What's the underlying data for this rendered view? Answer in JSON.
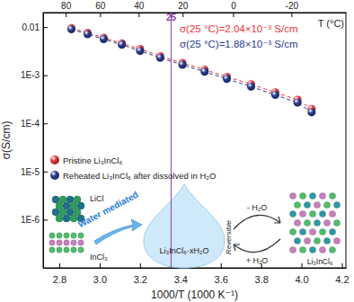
{
  "chart_data": {
    "type": "scatter",
    "x_label": "1000/T (1000 K⁻¹)",
    "y_label": "σ(S/cm)",
    "x2_label": "T (°C)",
    "log": "y",
    "xlim": [
      2.72,
      4.22
    ],
    "ylim": [
      1e-07,
      0.02
    ],
    "xticks": [
      2.8,
      {
        "value": 3,
        "label": "3.0"
      },
      3.2,
      3.4,
      3.6,
      3.8,
      {
        "value": 4,
        "label": "4.0"
      },
      4.2
    ],
    "x2ticks": [
      {
        "value": 2.832,
        "label": "80"
      },
      {
        "value": 3.002,
        "label": "60"
      },
      {
        "value": 3.193,
        "label": "40"
      },
      {
        "value": 3.411,
        "label": "20"
      },
      {
        "value": 3.661,
        "label": "0"
      },
      {
        "value": 3.95,
        "label": "-20"
      }
    ],
    "yticks": [
      {
        "value": 1e-06,
        "label": "1E-6"
      },
      {
        "value": 1e-05,
        "label": "1E-5"
      },
      {
        "value": 0.0001,
        "label": "1E-4"
      },
      {
        "value": 0.001,
        "label": "1E-3"
      },
      0.01
    ],
    "x": [
      2.86,
      2.94,
      3.02,
      3.11,
      3.2,
      3.3,
      3.41,
      3.52,
      3.63,
      3.75,
      3.87,
      3.98,
      4.05
    ],
    "series": [
      {
        "name": "Pristine Li₃InCl₆",
        "color": "#e8343b",
        "marker": "circle",
        "line_style": "dashed",
        "values": [
          0.0095,
          0.0076,
          0.006,
          0.0046,
          0.0035,
          0.0025,
          0.0018,
          0.0013,
          0.00093,
          0.00065,
          0.00044,
          0.00031,
          0.0002
        ]
      },
      {
        "name": "Reheated Li₃InCl₆ after dissolved in H₂O",
        "color": "#2b3a8f",
        "marker": "circle",
        "line_style": "dashed",
        "values": [
          0.009,
          0.0071,
          0.0056,
          0.0043,
          0.0032,
          0.0023,
          0.00165,
          0.00118,
          0.00084,
          0.00058,
          0.00039,
          0.00027,
          0.00017
        ]
      }
    ],
    "reference_line": {
      "x": 3.354,
      "label": "25",
      "color": "#8b3fa8"
    },
    "annotations": [
      {
        "text": "σ(25 °C)=2.04×10⁻³ S/cm",
        "color": "#e8343b"
      },
      {
        "text": "σ(25 °C)=1.88×10⁻³ S/cm",
        "color": "#2b3a8f"
      },
      {
        "text": "LiCl",
        "color": "#222222"
      },
      {
        "text": "InCl₃",
        "color": "#222222"
      },
      {
        "text": "Water mediated",
        "color": "#2a7fd0"
      },
      {
        "text": "Li₃InCl₆·xH₂O",
        "color": "#222222"
      },
      {
        "text": "- H₂O",
        "color": "#222222"
      },
      {
        "text": "Reversible",
        "color": "#222222"
      },
      {
        "text": "+ H₂O",
        "color": "#222222"
      },
      {
        "text": "Li₃InCl₆",
        "color": "#222222"
      }
    ],
    "legend": "center left"
  }
}
